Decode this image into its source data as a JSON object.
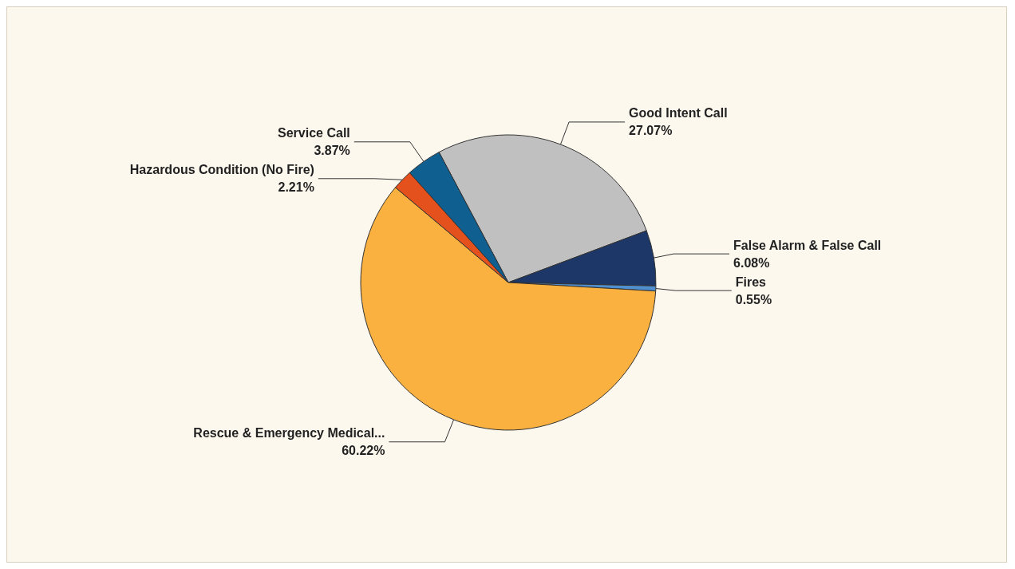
{
  "chart_data": {
    "type": "pie",
    "categories": [
      "Good Intent Call",
      "False Alarm & False Call",
      "Fires",
      "Rescue & Emergency Medical...",
      "Hazardous Condition (No Fire)",
      "Service Call"
    ],
    "values": [
      27.07,
      6.08,
      0.55,
      60.22,
      2.21,
      3.87
    ],
    "value_labels": [
      "27.07%",
      "6.08%",
      "0.55%",
      "60.22%",
      "2.21%",
      "3.87%"
    ],
    "colors": [
      "#c0c0c0",
      "#1c3768",
      "#4f8fcf",
      "#fbb13f",
      "#e4511c",
      "#0f5f90"
    ],
    "legend": false
  }
}
